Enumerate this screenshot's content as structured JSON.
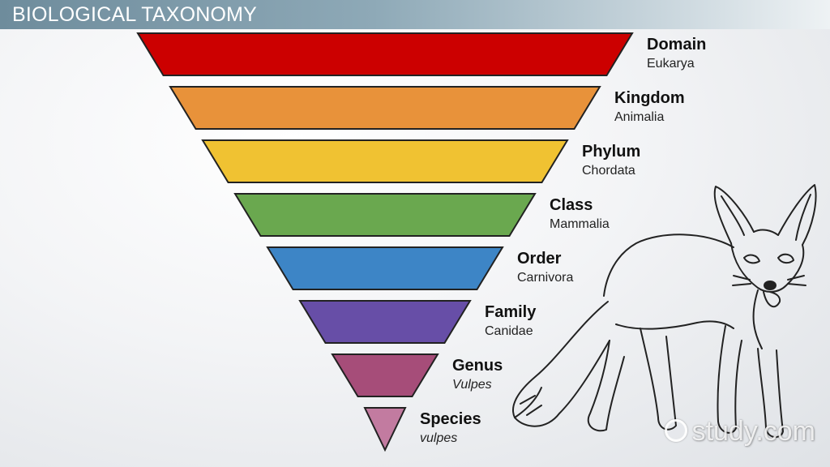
{
  "header": {
    "title": "BIOLOGICAL TAXONOMY"
  },
  "levels": [
    {
      "rank": "Domain",
      "value": "Eukarya",
      "color": "#cc0000",
      "italic": false
    },
    {
      "rank": "Kingdom",
      "value": "Animalia",
      "color": "#e8923a",
      "italic": false
    },
    {
      "rank": "Phylum",
      "value": "Chordata",
      "color": "#f0c232",
      "italic": false
    },
    {
      "rank": "Class",
      "value": "Mammalia",
      "color": "#6aa84f",
      "italic": false
    },
    {
      "rank": "Order",
      "value": "Carnivora",
      "color": "#3d85c6",
      "italic": false
    },
    {
      "rank": "Family",
      "value": "Canidae",
      "color": "#674ea7",
      "italic": false
    },
    {
      "rank": "Genus",
      "value": "Vulpes",
      "color": "#a64d79",
      "italic": true
    },
    {
      "rank": "Species",
      "value": "vulpes",
      "color": "#c27ba0",
      "italic": true
    }
  ],
  "illustration": {
    "subject": "fox-line-drawing-icon"
  },
  "watermark": {
    "text": "study.com",
    "icon": "study-logo-icon"
  }
}
